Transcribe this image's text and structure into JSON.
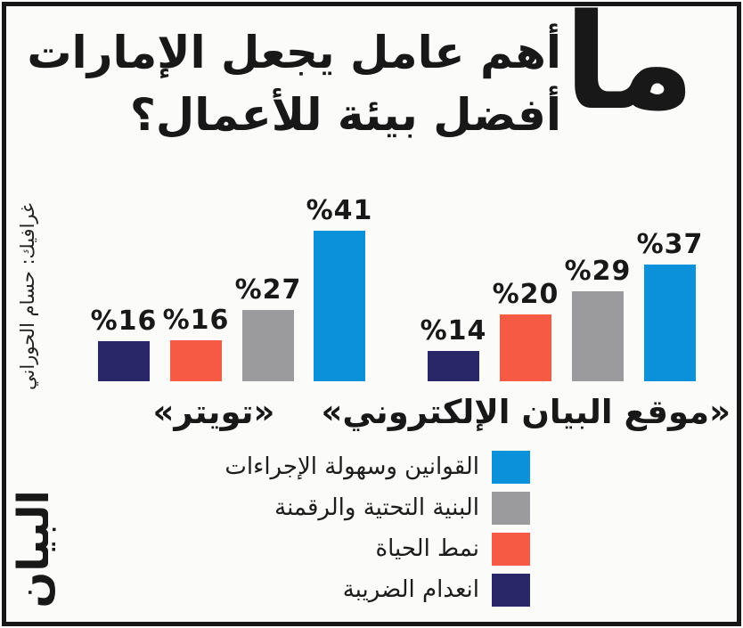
{
  "header": {
    "big_word": "ما",
    "title_line1": "أهم عامل يجعل الإمارات",
    "title_line2": "أفضل بيئة للأعمال؟"
  },
  "credit": {
    "text": "غرافيك: حسام الحوراني",
    "logo": "البيان"
  },
  "colors": {
    "blue": "#0a91d9",
    "gray": "#9b9b9e",
    "orange": "#f65a44",
    "navy": "#2a2768",
    "text": "#181818",
    "background": "#fbfbfa",
    "frame": "#161616"
  },
  "chart_data": {
    "type": "bar",
    "title": "ما أهم عامل يجعل الإمارات أفضل بيئة للأعمال؟",
    "unit": "%",
    "value_label_style": "percent sign before number, e.g. %41",
    "grid": false,
    "ylim": [
      0,
      45
    ],
    "legend_position": "bottom",
    "categories": [
      "«تويتر»",
      "«موقع البيان الإلكتروني»"
    ],
    "series": [
      {
        "name": "القوانين وسهولة الإجراءات",
        "color": "#0a91d9",
        "values": [
          41,
          37
        ]
      },
      {
        "name": "البنية التحتية والرقمنة",
        "color": "#9b9b9e",
        "values": [
          27,
          29
        ]
      },
      {
        "name": "نمط الحياة",
        "color": "#f65a44",
        "values": [
          16,
          20
        ]
      },
      {
        "name": "انعدام الضريبة",
        "color": "#2a2768",
        "values": [
          16,
          14
        ]
      }
    ],
    "groups": [
      {
        "id": "twitter",
        "label": "«تويتر»",
        "bars": [
          {
            "series": "انعدام الضريبة",
            "value": 16,
            "display": "%16",
            "color": "#2a2768",
            "x": 110,
            "h": 45
          },
          {
            "series": "نمط الحياة",
            "value": 16,
            "display": "%16",
            "color": "#f65a44",
            "x": 191,
            "h": 46
          },
          {
            "series": "البنية التحتية والرقمنة",
            "value": 27,
            "display": "%27",
            "color": "#9b9b9e",
            "x": 272,
            "h": 80
          },
          {
            "series": "القوانين وسهولة الإجراءات",
            "value": 41,
            "display": "%41",
            "color": "#0a91d9",
            "x": 352,
            "h": 169
          }
        ]
      },
      {
        "id": "bayan-website",
        "label": "«موقع البيان الإلكتروني»",
        "bars": [
          {
            "series": "انعدام الضريبة",
            "value": 14,
            "display": "%14",
            "color": "#2a2768",
            "x": 480,
            "h": 34
          },
          {
            "series": "نمط الحياة",
            "value": 20,
            "display": "%20",
            "color": "#f65a44",
            "x": 561,
            "h": 75
          },
          {
            "series": "البنية التحتية والرقمنة",
            "value": 29,
            "display": "%29",
            "color": "#9b9b9e",
            "x": 642,
            "h": 101
          },
          {
            "series": "القوانين وسهولة الإجراءات",
            "value": 37,
            "display": "%37",
            "color": "#0a91d9",
            "x": 723,
            "h": 131
          }
        ]
      }
    ]
  },
  "legend": {
    "items": [
      {
        "label": "القوانين وسهولة الإجراءات",
        "color": "#0a91d9"
      },
      {
        "label": "البنية التحتية والرقمنة",
        "color": "#9b9b9e"
      },
      {
        "label": "نمط الحياة",
        "color": "#f65a44"
      },
      {
        "label": "انعدام الضريبة",
        "color": "#2a2768"
      }
    ]
  }
}
